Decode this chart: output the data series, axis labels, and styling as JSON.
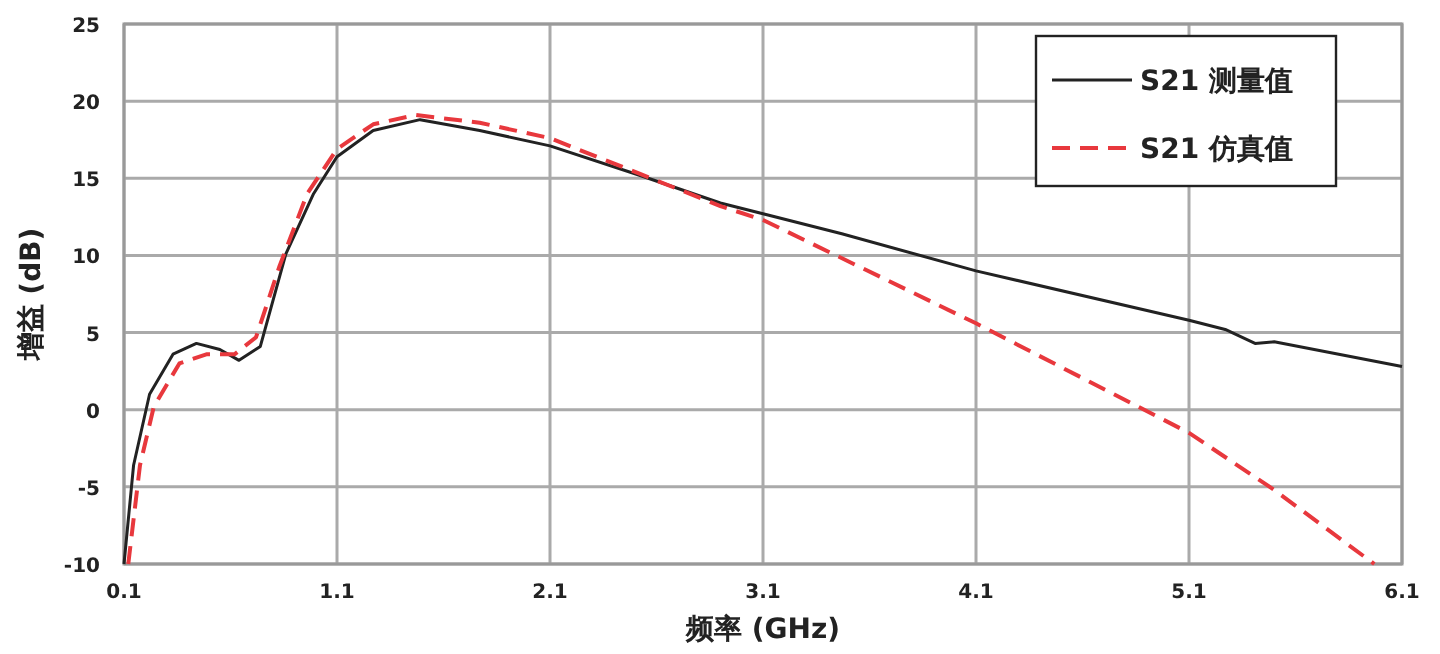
{
  "chart_data": {
    "type": "line",
    "xlabel": "频率 (GHz)",
    "ylabel": "增益 (dB)",
    "xlim": [
      0.1,
      6.1
    ],
    "ylim": [
      -10,
      25
    ],
    "xticks": [
      0.1,
      1.1,
      2.1,
      3.1,
      4.1,
      5.1,
      6.1
    ],
    "yticks": [
      -10,
      -5,
      0,
      5,
      10,
      15,
      20,
      25
    ],
    "grid": true,
    "legend": "top right",
    "series": [
      {
        "name": "S21 测量值",
        "color": "#222222",
        "line_style": "solid",
        "x": [
          0.1,
          0.145,
          0.22,
          0.33,
          0.44,
          0.55,
          0.64,
          0.74,
          0.86,
          0.99,
          1.1,
          1.27,
          1.49,
          1.77,
          2.1,
          2.52,
          2.9,
          3.1,
          3.47,
          4.1,
          5.1,
          5.27,
          5.41,
          5.5,
          6.1
        ],
        "values": [
          -10,
          -3.6,
          1,
          3.6,
          4.3,
          3.9,
          3.2,
          4.1,
          10.1,
          14,
          16.4,
          18.1,
          18.8,
          18.1,
          17.1,
          15.2,
          13.4,
          12.7,
          11.4,
          9.0,
          5.8,
          5.2,
          4.3,
          4.4,
          2.8
        ]
      },
      {
        "name": "S21 仿真值",
        "color": "#e8383d",
        "line_style": "dashed",
        "x": [
          0.12,
          0.175,
          0.24,
          0.36,
          0.49,
          0.62,
          0.72,
          0.83,
          0.96,
          1.1,
          1.27,
          1.47,
          1.77,
          2.1,
          2.52,
          2.9,
          3.1,
          4.1,
          5.1,
          5.5,
          5.97
        ],
        "values": [
          -10,
          -3.6,
          0.2,
          3.0,
          3.6,
          3.6,
          4.7,
          9.3,
          14,
          16.9,
          18.5,
          19.1,
          18.6,
          17.6,
          15.3,
          13.2,
          12.3,
          5.6,
          -1.5,
          -5.2,
          -10
        ]
      }
    ]
  }
}
